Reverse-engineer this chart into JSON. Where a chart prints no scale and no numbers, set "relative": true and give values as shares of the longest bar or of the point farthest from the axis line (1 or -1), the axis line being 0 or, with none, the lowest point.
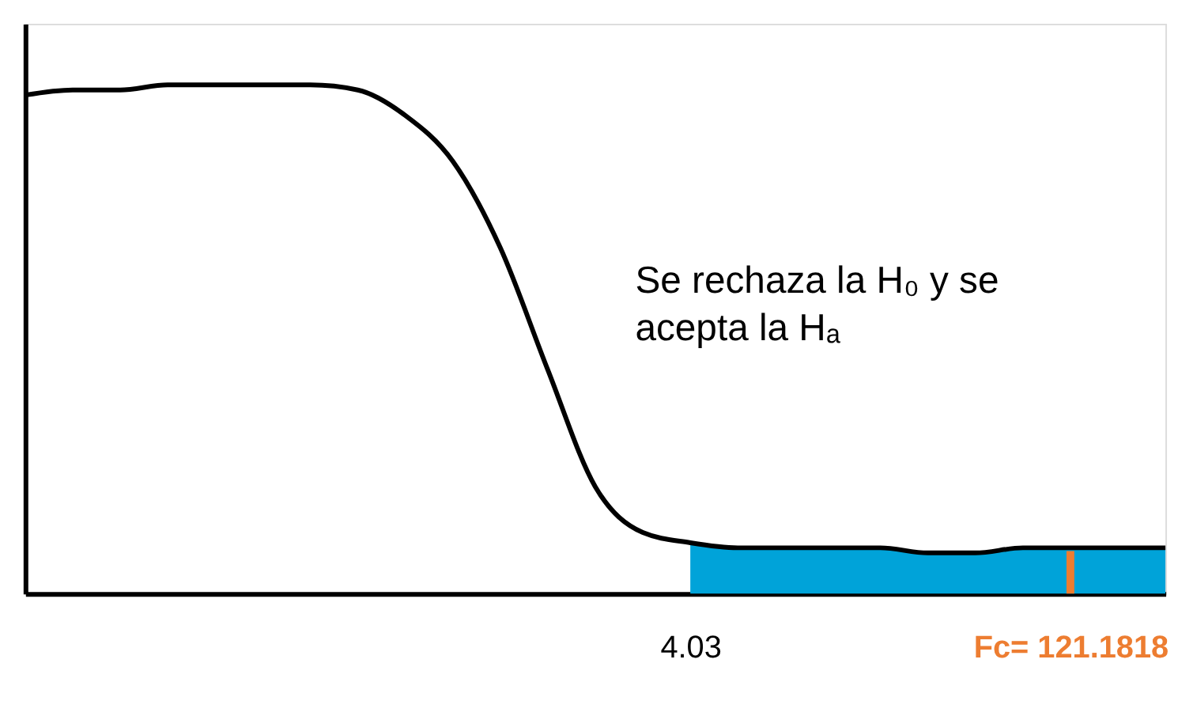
{
  "chart_data": {
    "type": "line",
    "relative": true,
    "grid": false,
    "marker": "none",
    "line_style": "solid",
    "tick_labels": "x",
    "categories": [
      null,
      null,
      null,
      null,
      null,
      null,
      null,
      null,
      null,
      null,
      null,
      null,
      null,
      null,
      "4.03",
      null,
      null,
      null,
      null,
      null,
      null,
      null,
      "Fc= 121.1818",
      null,
      null
    ],
    "series": [
      {
        "type": "area",
        "color": "#00a3d9",
        "values": [
          null,
          null,
          null,
          null,
          null,
          null,
          null,
          null,
          null,
          null,
          null,
          null,
          null,
          null,
          0.1,
          0.09,
          0.09,
          0.09,
          0.09,
          0.08,
          0.08,
          0.09,
          0.09,
          0.09,
          0.09
        ]
      },
      {
        "color": "#000000",
        "values": [
          0.98,
          0.99,
          0.99,
          1.0,
          1.0,
          1.0,
          1.0,
          0.99,
          0.94,
          0.85,
          0.68,
          0.44,
          0.21,
          0.12,
          0.1,
          0.09,
          0.09,
          0.09,
          0.09,
          0.08,
          0.08,
          0.09,
          0.09,
          0.09,
          0.09
        ]
      }
    ],
    "ref_lines": [
      {
        "axis": "x",
        "value": "Fc= 121.1818",
        "color": "#ed7d31"
      }
    ],
    "annotations": [
      "Se rechaza la H₀ y se acepta la Hₐ"
    ]
  }
}
